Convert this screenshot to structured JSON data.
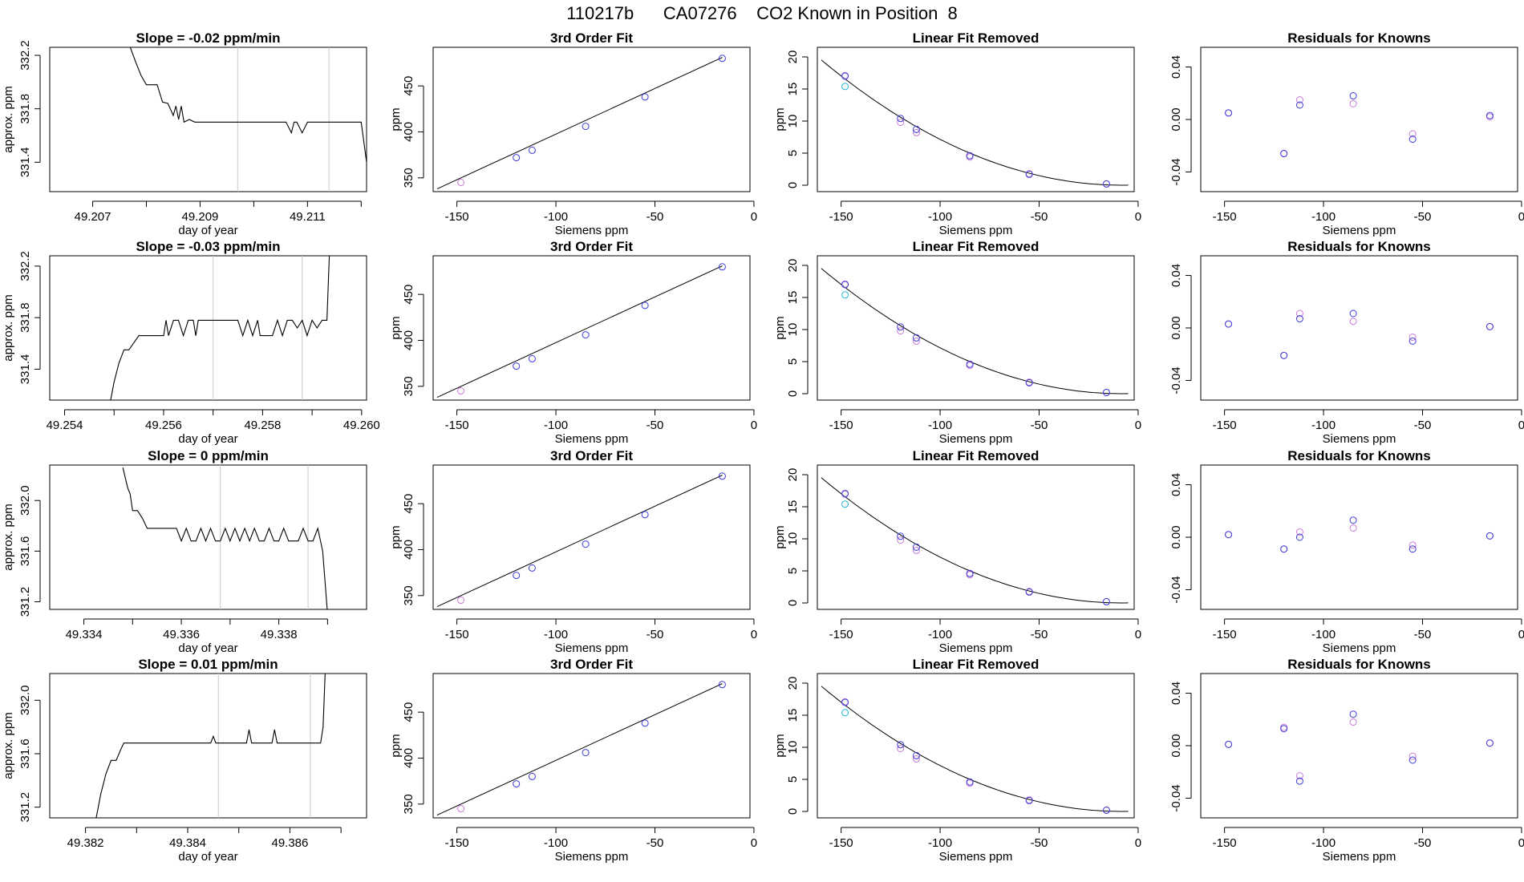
{
  "page_title": "110217b      CA07276    CO2 Known in Position  8",
  "chart_data": [
    {
      "type": "line",
      "row": 1,
      "col": 1,
      "title": "Slope =  -0.02  ppm/min",
      "xlabel": "day of year",
      "ylabel": "approx. ppm",
      "xlim": [
        49.2062,
        49.2121
      ],
      "ylim": [
        331.18,
        332.26
      ],
      "xticks": [
        "49.207",
        "49.208",
        "49.209",
        "49.210",
        "49.211",
        "49.212"
      ],
      "xtick_labels": [
        "49.207",
        "",
        "49.209",
        "",
        "49.211",
        ""
      ],
      "yticks": [
        "331.4",
        "331.8",
        "332.2"
      ],
      "vlines": [
        49.2097,
        49.2114
      ],
      "series": [
        {
          "name": "approx ppm",
          "x": [
            49.2077,
            49.2078,
            49.20785,
            49.2079,
            49.208,
            49.2082,
            49.2083,
            49.2084,
            49.2085,
            49.20855,
            49.2086,
            49.20865,
            49.2087,
            49.2088,
            49.2089,
            49.2095,
            49.2105,
            49.2106,
            49.2107,
            49.21075,
            49.2108,
            49.2109,
            49.211,
            49.212,
            49.2121,
            49.2122
          ],
          "y": [
            332.26,
            332.15,
            332.1,
            332.05,
            331.98,
            331.98,
            331.85,
            331.84,
            331.75,
            331.82,
            331.72,
            331.82,
            331.7,
            331.72,
            331.7,
            331.7,
            331.7,
            331.7,
            331.62,
            331.7,
            331.7,
            331.62,
            331.7,
            331.7,
            331.4,
            331.1
          ]
        }
      ]
    },
    {
      "type": "scatter",
      "row": 1,
      "col": 2,
      "title": "3rd Order Fit",
      "xlabel": "Siemens ppm",
      "ylabel": "ppm",
      "xlim": [
        -162,
        -2
      ],
      "ylim": [
        335,
        492
      ],
      "xticks": [
        "-150",
        "-100",
        "-50",
        "0"
      ],
      "yticks": [
        "350",
        "400",
        "450"
      ],
      "fit_x": [
        -160,
        -16
      ],
      "fit_y": [
        338,
        481
      ],
      "points_x": [
        -148,
        -120,
        -112,
        -85,
        -55,
        -16
      ],
      "points_y": [
        345,
        372,
        380,
        406,
        438,
        480
      ]
    },
    {
      "type": "scatter",
      "row": 1,
      "col": 3,
      "title": "Linear Fit Removed",
      "xlabel": "Siemens ppm",
      "ylabel": "ppm",
      "xlim": [
        -162,
        -2
      ],
      "ylim": [
        -1,
        21.5
      ],
      "xticks": [
        "-150",
        "-100",
        "-50",
        "0"
      ],
      "yticks": [
        "0",
        "5",
        "10",
        "15",
        "20"
      ],
      "curve_vertex": -8,
      "curve_a": 0.000845,
      "curve_xrange": [
        -160,
        -5
      ],
      "points_x": [
        -148,
        -120,
        -112,
        -85,
        -55,
        -16
      ],
      "blue": [
        17.0,
        10.4,
        8.7,
        4.6,
        1.7,
        0.2
      ],
      "violet": [
        17.1,
        9.8,
        8.2,
        4.4,
        1.8,
        0.2
      ],
      "cyan_x": -148,
      "cyan_y": 15.4
    },
    {
      "type": "scatter",
      "row": 1,
      "col": 4,
      "title": "Residuals for Knowns",
      "xlabel": "Siemens ppm",
      "ylabel": "",
      "xlim": [
        -162,
        -2
      ],
      "ylim": [
        -0.055,
        0.055
      ],
      "xticks": [
        "-150",
        "-100",
        "-50",
        "0"
      ],
      "yticks": [
        "-0.04",
        "0.00",
        "0.04"
      ],
      "points_x": [
        -148,
        -120,
        -112,
        -85,
        -55,
        -16
      ],
      "blue": [
        0.005,
        -0.026,
        0.011,
        0.018,
        -0.015,
        0.003
      ],
      "violet": [
        0.005,
        -0.026,
        0.015,
        0.012,
        -0.011,
        0.002
      ]
    },
    {
      "type": "line",
      "row": 2,
      "col": 1,
      "title": "Slope =  -0.03  ppm/min",
      "xlabel": "day of year",
      "ylabel": "approx. ppm",
      "xlim": [
        49.2537,
        49.2601
      ],
      "ylim": [
        331.16,
        332.28
      ],
      "xticks": [
        "49.254",
        "49.255",
        "49.256",
        "49.257",
        "49.258",
        "49.259",
        "49.260"
      ],
      "xtick_labels": [
        "49.254",
        "",
        "49.256",
        "",
        "49.258",
        "",
        "49.260"
      ],
      "yticks": [
        "331.4",
        "331.8",
        "332.2"
      ],
      "vlines": [
        49.257,
        49.2588
      ],
      "series": [
        {
          "name": "approx ppm",
          "x": [
            49.2549,
            49.255,
            49.2551,
            49.2552,
            49.2553,
            49.2555,
            49.2556,
            49.256,
            49.25605,
            49.2561,
            49.2562,
            49.2563,
            49.2564,
            49.2565,
            49.2566,
            49.25665,
            49.2567,
            49.2568,
            49.2569,
            49.257,
            49.2575,
            49.2576,
            49.2577,
            49.2578,
            49.2579,
            49.25795,
            49.258,
            49.2582,
            49.2583,
            49.2584,
            49.2585,
            49.2586,
            49.2587,
            49.2588,
            49.2589,
            49.259,
            49.2591,
            49.2592,
            49.2593,
            49.25935
          ],
          "y": [
            331.1,
            331.3,
            331.45,
            331.55,
            331.55,
            331.66,
            331.66,
            331.66,
            331.78,
            331.66,
            331.78,
            331.78,
            331.66,
            331.78,
            331.78,
            331.66,
            331.78,
            331.78,
            331.78,
            331.78,
            331.78,
            331.66,
            331.78,
            331.66,
            331.78,
            331.66,
            331.66,
            331.66,
            331.78,
            331.66,
            331.78,
            331.78,
            331.72,
            331.78,
            331.66,
            331.78,
            331.72,
            331.78,
            331.78,
            332.3
          ]
        }
      ]
    },
    {
      "type": "scatter",
      "row": 2,
      "col": 2,
      "title": "3rd Order Fit",
      "xlabel": "Siemens ppm",
      "ylabel": "ppm",
      "xlim": [
        -162,
        -2
      ],
      "ylim": [
        335,
        492
      ],
      "xticks": [
        "-150",
        "-100",
        "-50",
        "0"
      ],
      "yticks": [
        "350",
        "400",
        "450"
      ],
      "fit_x": [
        -160,
        -16
      ],
      "fit_y": [
        338,
        481
      ],
      "points_x": [
        -148,
        -120,
        -112,
        -85,
        -55,
        -16
      ],
      "points_y": [
        345,
        372,
        380,
        406,
        438,
        480
      ]
    },
    {
      "type": "scatter",
      "row": 2,
      "col": 3,
      "title": "Linear Fit Removed",
      "xlabel": "Siemens ppm",
      "ylabel": "ppm",
      "xlim": [
        -162,
        -2
      ],
      "ylim": [
        -1,
        21.5
      ],
      "xticks": [
        "-150",
        "-100",
        "-50",
        "0"
      ],
      "yticks": [
        "0",
        "5",
        "10",
        "15",
        "20"
      ],
      "curve_vertex": -8,
      "curve_a": 0.000845,
      "curve_xrange": [
        -160,
        -5
      ],
      "points_x": [
        -148,
        -120,
        -112,
        -85,
        -55,
        -16
      ],
      "blue": [
        17.0,
        10.4,
        8.7,
        4.6,
        1.7,
        0.2
      ],
      "violet": [
        17.1,
        9.8,
        8.2,
        4.4,
        1.8,
        0.2
      ],
      "cyan_x": -148,
      "cyan_y": 15.4
    },
    {
      "type": "scatter",
      "row": 2,
      "col": 4,
      "title": "Residuals for Knowns",
      "xlabel": "Siemens ppm",
      "ylabel": "",
      "xlim": [
        -162,
        -2
      ],
      "ylim": [
        -0.055,
        0.055
      ],
      "xticks": [
        "-150",
        "-100",
        "-50",
        "0"
      ],
      "yticks": [
        "-0.04",
        "0.00",
        "0.04"
      ],
      "points_x": [
        -148,
        -120,
        -112,
        -85,
        -55,
        -16
      ],
      "blue": [
        0.003,
        -0.021,
        0.007,
        0.011,
        -0.01,
        0.001
      ],
      "violet": [
        0.003,
        -0.021,
        0.011,
        0.005,
        -0.007,
        0.001
      ]
    },
    {
      "type": "line",
      "row": 3,
      "col": 1,
      "title": "Slope =  0  ppm/min",
      "xlabel": "day of year",
      "ylabel": "approx. ppm",
      "xlim": [
        49.3333,
        49.3398
      ],
      "ylim": [
        331.14,
        332.28
      ],
      "xticks": [
        "49.334",
        "49.335",
        "49.336",
        "49.337",
        "49.338",
        "49.339"
      ],
      "xtick_labels": [
        "49.334",
        "",
        "49.336",
        "",
        "49.338",
        ""
      ],
      "yticks": [
        "331.2",
        "331.6",
        "332.0"
      ],
      "vlines": [
        49.3368,
        49.3386
      ],
      "series": [
        {
          "name": "approx ppm",
          "x": [
            49.3348,
            49.3349,
            49.33495,
            49.335,
            49.3351,
            49.3352,
            49.3353,
            49.3354,
            49.3359,
            49.336,
            49.3361,
            49.3362,
            49.3363,
            49.3364,
            49.3365,
            49.3366,
            49.3367,
            49.3368,
            49.3369,
            49.337,
            49.3371,
            49.3372,
            49.3373,
            49.3374,
            49.3375,
            49.3376,
            49.3377,
            49.3378,
            49.3379,
            49.338,
            49.3381,
            49.3382,
            49.3383,
            49.3384,
            49.3385,
            49.3386,
            49.3387,
            49.3388,
            49.3389,
            49.339
          ],
          "y": [
            332.26,
            332.1,
            332.05,
            331.92,
            331.92,
            331.86,
            331.78,
            331.78,
            331.78,
            331.68,
            331.78,
            331.68,
            331.68,
            331.78,
            331.68,
            331.78,
            331.68,
            331.68,
            331.78,
            331.68,
            331.78,
            331.68,
            331.78,
            331.68,
            331.78,
            331.68,
            331.68,
            331.78,
            331.68,
            331.68,
            331.78,
            331.68,
            331.68,
            331.68,
            331.78,
            331.68,
            331.68,
            331.78,
            331.6,
            331.1
          ]
        }
      ]
    },
    {
      "type": "scatter",
      "row": 3,
      "col": 2,
      "title": "3rd Order Fit",
      "xlabel": "Siemens ppm",
      "ylabel": "ppm",
      "xlim": [
        -162,
        -2
      ],
      "ylim": [
        335,
        492
      ],
      "xticks": [
        "-150",
        "-100",
        "-50",
        "0"
      ],
      "yticks": [
        "350",
        "400",
        "450"
      ],
      "fit_x": [
        -160,
        -16
      ],
      "fit_y": [
        338,
        481
      ],
      "points_x": [
        -148,
        -120,
        -112,
        -85,
        -55,
        -16
      ],
      "points_y": [
        345,
        372,
        380,
        406,
        438,
        480
      ]
    },
    {
      "type": "scatter",
      "row": 3,
      "col": 3,
      "title": "Linear Fit Removed",
      "xlabel": "Siemens ppm",
      "ylabel": "ppm",
      "xlim": [
        -162,
        -2
      ],
      "ylim": [
        -1,
        21.5
      ],
      "xticks": [
        "-150",
        "-100",
        "-50",
        "0"
      ],
      "yticks": [
        "0",
        "5",
        "10",
        "15",
        "20"
      ],
      "curve_vertex": -8,
      "curve_a": 0.000845,
      "curve_xrange": [
        -160,
        -5
      ],
      "points_x": [
        -148,
        -120,
        -112,
        -85,
        -55,
        -16
      ],
      "blue": [
        17.0,
        10.4,
        8.7,
        4.6,
        1.7,
        0.2
      ],
      "violet": [
        17.1,
        9.8,
        8.2,
        4.4,
        1.8,
        0.2
      ],
      "cyan_x": -148,
      "cyan_y": 15.4
    },
    {
      "type": "scatter",
      "row": 3,
      "col": 4,
      "title": "Residuals for Knowns",
      "xlabel": "Siemens ppm",
      "ylabel": "",
      "xlim": [
        -162,
        -2
      ],
      "ylim": [
        -0.055,
        0.055
      ],
      "xticks": [
        "-150",
        "-100",
        "-50",
        "0"
      ],
      "yticks": [
        "-0.04",
        "0.00",
        "0.04"
      ],
      "points_x": [
        -148,
        -120,
        -112,
        -85,
        -55,
        -16
      ],
      "blue": [
        0.002,
        -0.009,
        0.0,
        0.013,
        -0.009,
        0.001
      ],
      "violet": [
        0.002,
        -0.009,
        0.004,
        0.007,
        -0.006,
        0.001
      ]
    },
    {
      "type": "line",
      "row": 4,
      "col": 1,
      "title": "Slope =  0.01  ppm/min",
      "xlabel": "day of year",
      "ylabel": "approx. ppm",
      "xlim": [
        49.3813,
        49.3875
      ],
      "ylim": [
        331.12,
        332.2
      ],
      "xticks": [
        "49.382",
        "49.383",
        "49.384",
        "49.385",
        "49.386",
        "49.387"
      ],
      "xtick_labels": [
        "49.382",
        "",
        "49.384",
        "",
        "49.386",
        ""
      ],
      "yticks": [
        "331.2",
        "331.6",
        "332.0"
      ],
      "vlines": [
        49.3846,
        49.3864
      ],
      "series": [
        {
          "name": "approx ppm",
          "x": [
            49.3822,
            49.3823,
            49.3824,
            49.3825,
            49.3826,
            49.3827,
            49.38275,
            49.3835,
            49.38445,
            49.3845,
            49.38455,
            49.385,
            49.38515,
            49.3852,
            49.38525,
            49.3855,
            49.38565,
            49.3857,
            49.38575,
            49.3866,
            49.38665,
            49.3867
          ],
          "y": [
            331.1,
            331.3,
            331.45,
            331.55,
            331.55,
            331.64,
            331.68,
            331.68,
            331.68,
            331.73,
            331.68,
            331.68,
            331.68,
            331.78,
            331.68,
            331.68,
            331.68,
            331.78,
            331.68,
            331.68,
            331.8,
            332.3
          ]
        }
      ]
    },
    {
      "type": "scatter",
      "row": 4,
      "col": 2,
      "title": "3rd Order Fit",
      "xlabel": "Siemens ppm",
      "ylabel": "ppm",
      "xlim": [
        -162,
        -2
      ],
      "ylim": [
        335,
        492
      ],
      "xticks": [
        "-150",
        "-100",
        "-50",
        "0"
      ],
      "yticks": [
        "350",
        "400",
        "450"
      ],
      "fit_x": [
        -160,
        -16
      ],
      "fit_y": [
        338,
        481
      ],
      "points_x": [
        -148,
        -120,
        -112,
        -85,
        -55,
        -16
      ],
      "points_y": [
        345,
        372,
        380,
        406,
        438,
        480
      ]
    },
    {
      "type": "scatter",
      "row": 4,
      "col": 3,
      "title": "Linear Fit Removed",
      "xlabel": "Siemens ppm",
      "ylabel": "ppm",
      "xlim": [
        -162,
        -2
      ],
      "ylim": [
        -1,
        21.5
      ],
      "xticks": [
        "-150",
        "-100",
        "-50",
        "0"
      ],
      "yticks": [
        "0",
        "5",
        "10",
        "15",
        "20"
      ],
      "curve_vertex": -8,
      "curve_a": 0.000845,
      "curve_xrange": [
        -160,
        -5
      ],
      "points_x": [
        -148,
        -120,
        -112,
        -85,
        -55,
        -16
      ],
      "blue": [
        17.0,
        10.4,
        8.7,
        4.6,
        1.7,
        0.2
      ],
      "violet": [
        17.1,
        9.8,
        8.2,
        4.4,
        1.8,
        0.2
      ],
      "cyan_x": -148,
      "cyan_y": 15.4
    },
    {
      "type": "scatter",
      "row": 4,
      "col": 4,
      "title": "Residuals for Knowns",
      "xlabel": "Siemens ppm",
      "ylabel": "",
      "xlim": [
        -162,
        -2
      ],
      "ylim": [
        -0.055,
        0.055
      ],
      "xticks": [
        "-150",
        "-100",
        "-50",
        "0"
      ],
      "yticks": [
        "-0.04",
        "0.00",
        "0.04"
      ],
      "points_x": [
        -148,
        -120,
        -112,
        -85,
        -55,
        -16
      ],
      "blue": [
        0.001,
        0.013,
        -0.027,
        0.024,
        -0.011,
        0.002
      ],
      "violet": [
        0.001,
        0.014,
        -0.023,
        0.018,
        -0.008,
        0.002
      ]
    }
  ],
  "colors": {
    "line": "#000000",
    "blue_points": "#3b3bd9",
    "violet_points": "#c77bd6",
    "cyan_points": "#22b8d6",
    "red_marks": "#e0707c",
    "vline": "#c8c8c8"
  }
}
